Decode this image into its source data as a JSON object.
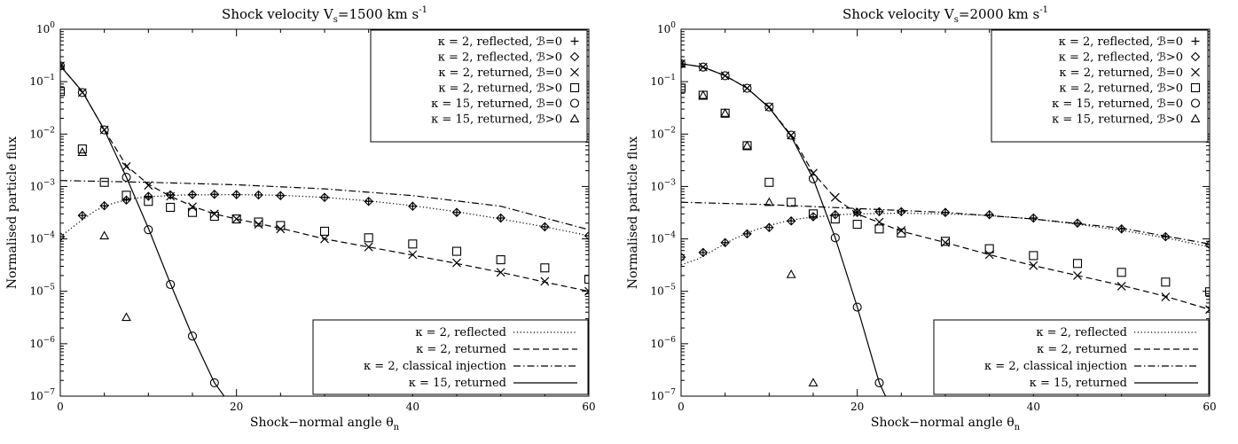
{
  "chart_data": [
    {
      "type": "scatter",
      "title": "Shock velocity V",
      "title_sub": "s",
      "title_rest": "=1500 km s",
      "title_sup": "-1",
      "xlabel": "Shock−normal angle θ",
      "xlabel_sub": "n",
      "ylabel": "Normalised particle flux",
      "xlim": [
        0,
        60
      ],
      "ylim": [
        1e-07,
        1
      ],
      "yscale": "log",
      "x_ticks": [
        "0",
        "20",
        "40",
        "60"
      ],
      "legend_markers": [
        {
          "text": "κ = 2, reflected, ℬ=0",
          "glyph": "+"
        },
        {
          "text": "κ = 2, reflected, ℬ>0",
          "glyph": "◇"
        },
        {
          "text": "κ = 2, returned, ℬ=0",
          "glyph": "×"
        },
        {
          "text": "κ = 2, returned, ℬ>0",
          "glyph": "□"
        },
        {
          "text": "κ = 15, returned, ℬ=0",
          "glyph": "○"
        },
        {
          "text": "κ = 15, returned, ℬ>0",
          "glyph": "△"
        }
      ],
      "legend_lines": [
        {
          "text": "κ = 2, reflected",
          "dash": "dotted"
        },
        {
          "text": "κ = 2, returned",
          "dash": "dashed"
        },
        {
          "text": "κ = 2, classical injection",
          "dash": "dashdot"
        },
        {
          "text": "κ = 15, returned",
          "dash": "solid"
        }
      ],
      "lines": [
        {
          "style": "dotted",
          "x": [
            0,
            2,
            4,
            6,
            8,
            10,
            14,
            20,
            25,
            30,
            35,
            40,
            45,
            50,
            55,
            60
          ],
          "y": [
            0.00011,
            0.0002,
            0.00035,
            0.00048,
            0.00058,
            0.00064,
            0.00069,
            0.0007,
            0.00068,
            0.00062,
            0.00053,
            0.00043,
            0.00033,
            0.00024,
            0.00017,
            0.000115
          ]
        },
        {
          "style": "dashed",
          "x": [
            0,
            2.5,
            5,
            7.5,
            10,
            12.5,
            15,
            17.5,
            20,
            25,
            30,
            35,
            40,
            45,
            50,
            55,
            60
          ],
          "y": [
            0.2,
            0.065,
            0.012,
            0.0025,
            0.0011,
            0.00065,
            0.00042,
            0.0003,
            0.00024,
            0.00016,
            0.0001,
            7e-05,
            4.9e-05,
            3.4e-05,
            2.3e-05,
            1.5e-05,
            1e-05
          ]
        },
        {
          "style": "dashdot",
          "x": [
            0,
            10,
            20,
            30,
            40,
            50,
            60
          ],
          "y": [
            0.0013,
            0.0012,
            0.00108,
            0.0009,
            0.00067,
            0.00042,
            0.00015
          ]
        },
        {
          "style": "solid",
          "x": [
            0,
            2.5,
            5,
            7.5,
            10,
            12.5,
            15,
            17.5,
            18.6
          ],
          "y": [
            0.2,
            0.065,
            0.012,
            0.0015,
            0.00016,
            1.4e-05,
            1.4e-06,
            1.8e-07,
            1e-07
          ]
        }
      ],
      "markers": {
        "plus": {
          "x": [
            0,
            2.5,
            5,
            7.5,
            10,
            12.5,
            15,
            17.5,
            20,
            22.5,
            25,
            30,
            35,
            40,
            45,
            50,
            55,
            60
          ],
          "y": [
            0.00011,
            0.00028,
            0.00043,
            0.00055,
            0.00065,
            0.00069,
            0.0007,
            0.00071,
            0.0007,
            0.00069,
            0.00067,
            0.00062,
            0.00052,
            0.00042,
            0.00032,
            0.00025,
            0.00017,
            0.000115
          ]
        },
        "diamond": {
          "x": [
            0,
            2.5,
            5,
            7.5,
            10,
            12.5,
            15,
            17.5,
            20,
            22.5,
            25,
            30,
            35,
            40,
            45,
            50,
            55,
            60
          ],
          "y": [
            0.00011,
            0.00028,
            0.00043,
            0.00055,
            0.00065,
            0.00069,
            0.0007,
            0.00071,
            0.0007,
            0.00069,
            0.00067,
            0.00062,
            0.00052,
            0.00042,
            0.00032,
            0.00025,
            0.00017,
            0.000115
          ]
        },
        "cross": {
          "x": [
            0,
            2.5,
            5,
            7.5,
            10,
            12.5,
            15,
            17.5,
            20,
            22.5,
            25,
            30,
            35,
            40,
            45,
            50,
            55,
            60
          ],
          "y": [
            0.2,
            0.062,
            0.012,
            0.0024,
            0.00105,
            0.00065,
            0.00041,
            0.0003,
            0.00024,
            0.00019,
            0.000155,
            0.0001,
            7e-05,
            5e-05,
            3.5e-05,
            2.3e-05,
            1.55e-05,
            1e-05
          ]
        },
        "square": {
          "x": [
            0,
            2.5,
            5,
            7.5,
            10,
            12.5,
            15,
            17.5,
            20,
            22.5,
            25,
            30,
            35,
            40,
            45,
            50,
            55,
            60
          ],
          "y": [
            0.065,
            0.0052,
            0.0012,
            0.00068,
            0.00052,
            0.0004,
            0.00032,
            0.00027,
            0.00024,
            0.00021,
            0.00018,
            0.00014,
            0.000105,
            8e-05,
            5.8e-05,
            4e-05,
            2.8e-05,
            1.7e-05
          ]
        },
        "circle": {
          "x": [
            0,
            2.5,
            5,
            7.5,
            10,
            12.5,
            15,
            17.5
          ],
          "y": [
            0.2,
            0.062,
            0.012,
            0.0015,
            0.00015,
            1.35e-05,
            1.4e-06,
            1.8e-07
          ]
        },
        "triangle": {
          "x": [
            0,
            2.5,
            5,
            7.5
          ],
          "y": [
            0.2,
            0.0045,
            0.000115,
            3.2e-06
          ]
        }
      }
    },
    {
      "type": "scatter",
      "title": "Shock velocity V",
      "title_sub": "s",
      "title_rest": "=2000 km s",
      "title_sup": "-1",
      "xlabel": "Shock−normal angle θ",
      "xlabel_sub": "n",
      "ylabel": "Normalised particle flux",
      "xlim": [
        0,
        60
      ],
      "ylim": [
        1e-07,
        1
      ],
      "yscale": "log",
      "x_ticks": [
        "0",
        "20",
        "40",
        "60"
      ],
      "legend_markers": [
        {
          "text": "κ = 2, reflected, ℬ=0",
          "glyph": "+"
        },
        {
          "text": "κ = 2, reflected, ℬ>0",
          "glyph": "◇"
        },
        {
          "text": "κ = 2, returned, ℬ=0",
          "glyph": "×"
        },
        {
          "text": "κ = 2, returned, ℬ>0",
          "glyph": "□"
        },
        {
          "text": "κ = 15, returned, ℬ=0",
          "glyph": "○"
        },
        {
          "text": "κ = 15, returned, ℬ>0",
          "glyph": "△"
        }
      ],
      "legend_lines": [
        {
          "text": "κ = 2, reflected",
          "dash": "dotted"
        },
        {
          "text": "κ = 2, returned",
          "dash": "dashed"
        },
        {
          "text": "κ = 2, classical injection",
          "dash": "dashdot"
        },
        {
          "text": "κ = 15, returned",
          "dash": "solid"
        }
      ],
      "lines": [
        {
          "style": "dotted",
          "x": [
            0,
            2,
            4,
            6,
            8,
            10,
            12,
            14,
            16,
            18,
            20,
            25,
            30,
            35,
            40,
            45,
            50,
            55,
            60
          ],
          "y": [
            3.2e-05,
            4.2e-05,
            6.5e-05,
            0.0001,
            0.00014,
            0.00018,
            0.00022,
            0.00025,
            0.00027,
            0.00029,
            0.0003,
            0.00031,
            0.0003,
            0.00028,
            0.00024,
            0.00019,
            0.000145,
            0.000105,
            7e-05
          ]
        },
        {
          "style": "dashed",
          "x": [
            0,
            2.5,
            5,
            7.5,
            10,
            12.5,
            15,
            17.5,
            20,
            25,
            30,
            35,
            40,
            45,
            50,
            55,
            60
          ],
          "y": [
            0.22,
            0.19,
            0.13,
            0.075,
            0.032,
            0.0095,
            0.0018,
            0.0006,
            0.0003,
            0.00014,
            8.5e-05,
            5e-05,
            3.1e-05,
            2e-05,
            1.3e-05,
            8e-06,
            4.5e-06
          ]
        },
        {
          "style": "dashdot",
          "x": [
            0,
            10,
            20,
            30,
            40,
            50,
            60
          ],
          "y": [
            0.0005,
            0.00045,
            0.00038,
            0.00032,
            0.00024,
            0.00016,
            8e-05
          ]
        },
        {
          "style": "solid",
          "x": [
            0,
            2.5,
            5,
            7.5,
            10,
            12.5,
            15,
            17.5,
            20,
            22.5,
            23.2
          ],
          "y": [
            0.22,
            0.19,
            0.13,
            0.075,
            0.032,
            0.009,
            0.0014,
            0.000105,
            5e-06,
            1.8e-07,
            1e-07
          ]
        }
      ],
      "markers": {
        "plus": {
          "x": [
            0,
            2.5,
            5,
            7.5,
            10,
            12.5,
            15,
            17.5,
            20,
            22.5,
            25,
            30,
            35,
            40,
            45,
            50,
            55,
            60
          ],
          "y": [
            4.5e-05,
            5.5e-05,
            8.5e-05,
            0.000125,
            0.000165,
            0.00022,
            0.000265,
            0.00029,
            0.00032,
            0.00033,
            0.00033,
            0.00032,
            0.00029,
            0.00025,
            0.0002,
            0.000155,
            0.00011,
            7.8e-05
          ]
        },
        "diamond": {
          "x": [
            0,
            2.5,
            5,
            7.5,
            10,
            12.5,
            15,
            17.5,
            20,
            22.5,
            25,
            30,
            35,
            40,
            45,
            50,
            55,
            60
          ],
          "y": [
            4.5e-05,
            5.5e-05,
            8.5e-05,
            0.000125,
            0.000165,
            0.00022,
            0.000265,
            0.00029,
            0.00032,
            0.00033,
            0.00033,
            0.00032,
            0.00029,
            0.00025,
            0.0002,
            0.000155,
            0.00011,
            7.8e-05
          ]
        },
        "cross": {
          "x": [
            0,
            2.5,
            5,
            7.5,
            10,
            12.5,
            15,
            17.5,
            20,
            22.5,
            25,
            30,
            35,
            40,
            45,
            50,
            55,
            60
          ],
          "y": [
            0.22,
            0.19,
            0.13,
            0.075,
            0.033,
            0.0095,
            0.0018,
            0.00062,
            0.00032,
            0.00021,
            0.000145,
            8.5e-05,
            5e-05,
            3.1e-05,
            2e-05,
            1.25e-05,
            7.8e-06,
            4.5e-06
          ]
        },
        "square": {
          "x": [
            0,
            2.5,
            5,
            7.5,
            10,
            12.5,
            15,
            17.5,
            20,
            22.5,
            25,
            30,
            35,
            40,
            45,
            50,
            55,
            60
          ],
          "y": [
            0.075,
            0.055,
            0.025,
            0.006,
            0.0012,
            0.0005,
            0.0003,
            0.00024,
            0.00019,
            0.000155,
            0.00013,
            9e-05,
            6.5e-05,
            4.8e-05,
            3.4e-05,
            2.3e-05,
            1.5e-05,
            9.8e-06
          ]
        },
        "circle": {
          "x": [
            0,
            2.5,
            5,
            7.5,
            10,
            12.5,
            15,
            17.5,
            20,
            22.5
          ],
          "y": [
            0.22,
            0.19,
            0.13,
            0.075,
            0.033,
            0.0095,
            0.0014,
            0.000105,
            5e-06,
            1.8e-07
          ]
        },
        "triangle": {
          "x": [
            0,
            2.5,
            5,
            7.5,
            10,
            12.5,
            15
          ],
          "y": [
            0.22,
            0.055,
            0.025,
            0.006,
            0.0005,
            2.1e-05,
            1.8e-07
          ]
        }
      }
    }
  ]
}
